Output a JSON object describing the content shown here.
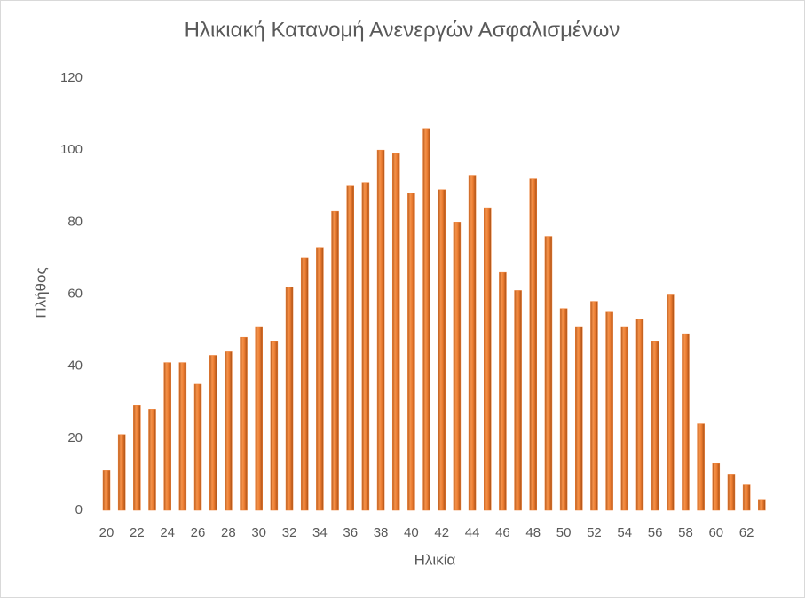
{
  "chart_data": {
    "type": "bar",
    "title": "Ηλικιακή Κατανομή Ανενεργών Ασφαλισμένων",
    "x_label": "Ηλικία",
    "y_label": "Πλήθος",
    "categories": [
      "20",
      null,
      "22",
      null,
      "24",
      null,
      "26",
      null,
      "28",
      null,
      "30",
      null,
      "32",
      null,
      "34",
      null,
      "36",
      null,
      "38",
      null,
      "40",
      null,
      "42",
      null,
      "44",
      null,
      "46",
      null,
      "48",
      null,
      "50",
      null,
      "52",
      null,
      "54",
      null,
      "56",
      null,
      "58",
      null,
      "60",
      null,
      "62",
      null
    ],
    "values": [
      11,
      21,
      29,
      28,
      41,
      41,
      35,
      43,
      44,
      48,
      51,
      47,
      62,
      70,
      73,
      83,
      90,
      91,
      100,
      99,
      88,
      106,
      89,
      80,
      93,
      84,
      66,
      61,
      92,
      76,
      56,
      51,
      58,
      55,
      51,
      53,
      47,
      60,
      49,
      24,
      13,
      10,
      7,
      3
    ],
    "color": "#ed7d31",
    "ylim": [
      0,
      120
    ],
    "yticks": [
      0,
      20,
      40,
      60,
      80,
      100,
      120
    ],
    "grid": false
  }
}
